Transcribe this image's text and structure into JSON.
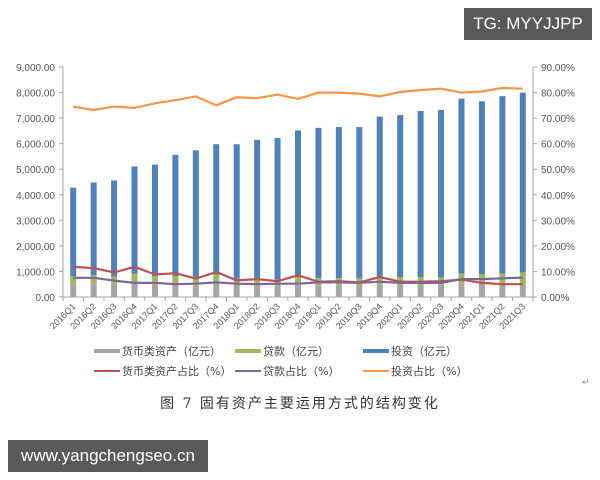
{
  "watermarks": {
    "top_right": "TG: MYYJJPP",
    "bottom_left": "www.yangchengseo.cn"
  },
  "caption": "图 7    固有资产主要运用方式的结构变化",
  "colors": {
    "currency_bar": "#A5A5A5",
    "loan_bar": "#9BBB59",
    "investment_bar": "#4F81BD",
    "currency_ratio_line": "#C0504D",
    "loan_ratio_line": "#8064A2",
    "investment_ratio_line": "#F79646"
  },
  "legend": {
    "currency": "货币类资产（亿元）",
    "loan": "贷款（亿元）",
    "investment": "投资（亿元）",
    "currency_ratio": "货币类资产占比（%）",
    "loan_ratio": "贷款占比（%）",
    "investment_ratio": "投资占比（%）"
  },
  "chart_data": {
    "type": "bar",
    "stacked": true,
    "title": "固有资产主要运用方式的结构变化",
    "xlabel": "",
    "ylabel": "",
    "ylim": [
      0,
      9000
    ],
    "y2lim": [
      0,
      90
    ],
    "y_ticks": [
      "0.00",
      "1,000.00",
      "2,000.00",
      "3,000.00",
      "4,000.00",
      "5,000.00",
      "6,000.00",
      "7,000.00",
      "8,000.00",
      "9,000.00"
    ],
    "y2_ticks": [
      "0.00%",
      "10.00%",
      "20.00%",
      "30.00%",
      "40.00%",
      "50.00%",
      "60.00%",
      "70.00%",
      "80.00%",
      "90.00%"
    ],
    "grid": false,
    "legend_position": "bottom",
    "categories": [
      "2016Q1",
      "2016Q2",
      "2016Q3",
      "2016Q4",
      "2017Q1",
      "2017Q2",
      "2017Q3",
      "2017Q4",
      "2018Q1",
      "2018Q2",
      "2018Q3",
      "2018Q4",
      "2019Q1",
      "2019Q2",
      "2019Q3",
      "2019Q4",
      "2020Q1",
      "2020Q2",
      "2020Q3",
      "2020Q4",
      "2021Q1",
      "2021Q2",
      "2021Q3"
    ],
    "series": [
      {
        "name": "货币类资产（亿元）",
        "type": "bar",
        "axis": "left",
        "values": [
          520,
          540,
          520,
          560,
          500,
          490,
          460,
          510,
          450,
          440,
          430,
          470,
          460,
          440,
          450,
          480,
          470,
          460,
          480,
          520,
          520,
          480,
          500
        ]
      },
      {
        "name": "贷款（亿元）",
        "type": "bar",
        "axis": "left",
        "values": [
          300,
          310,
          280,
          350,
          320,
          330,
          280,
          360,
          270,
          260,
          250,
          300,
          280,
          300,
          280,
          310,
          300,
          310,
          290,
          390,
          380,
          440,
          460
        ]
      },
      {
        "name": "投资（亿元）",
        "type": "bar",
        "axis": "left",
        "values": [
          3460,
          3630,
          3760,
          4200,
          4360,
          4740,
          5000,
          5110,
          5260,
          5450,
          5540,
          5750,
          5880,
          5910,
          5920,
          6270,
          6350,
          6510,
          6550,
          6850,
          6760,
          6940,
          7040
        ]
      },
      {
        "name": "货币类资产占比（%）",
        "type": "line",
        "axis": "right",
        "values": [
          11.8,
          11.3,
          9.6,
          11.8,
          8.8,
          9.3,
          7.2,
          9.8,
          6.5,
          7.0,
          6.2,
          8.5,
          6.0,
          6.2,
          5.7,
          7.8,
          6.0,
          6.0,
          6.2,
          6.8,
          5.5,
          5.0,
          5.0
        ]
      },
      {
        "name": "贷款占比（%）",
        "type": "line",
        "axis": "right",
        "values": [
          7.5,
          7.5,
          6.4,
          5.5,
          5.5,
          5.0,
          5.2,
          5.7,
          5.2,
          5.0,
          5.2,
          5.2,
          5.7,
          5.7,
          5.5,
          6.0,
          5.5,
          5.5,
          5.5,
          7.0,
          7.0,
          7.3,
          7.6
        ]
      },
      {
        "name": "投资占比（%）",
        "type": "line",
        "axis": "right",
        "values": [
          74.5,
          73.2,
          74.5,
          74.0,
          75.8,
          77.0,
          78.5,
          75.0,
          78.2,
          77.8,
          79.2,
          77.5,
          80.0,
          80.0,
          79.6,
          78.5,
          80.2,
          81.0,
          81.5,
          80.0,
          80.4,
          81.8,
          81.5
        ]
      }
    ]
  }
}
